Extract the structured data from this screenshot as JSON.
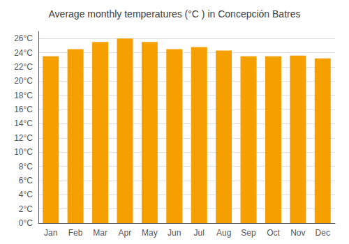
{
  "chart_data": {
    "type": "bar",
    "title": "Average monthly temperatures (°C ) in Concepción Batres",
    "categories": [
      "Jan",
      "Feb",
      "Mar",
      "Apr",
      "May",
      "Jun",
      "Jul",
      "Aug",
      "Sep",
      "Oct",
      "Nov",
      "Dec"
    ],
    "values": [
      23.5,
      24.5,
      25.5,
      26.0,
      25.5,
      24.5,
      24.8,
      24.3,
      23.5,
      23.5,
      23.6,
      23.2
    ],
    "color": "#F5A000",
    "ylim": [
      0,
      27
    ],
    "yticks": [
      {
        "value": 0,
        "label": "0°C"
      },
      {
        "value": 2,
        "label": "2°C"
      },
      {
        "value": 4,
        "label": "4°C"
      },
      {
        "value": 6,
        "label": "6°C"
      },
      {
        "value": 8,
        "label": "8°C"
      },
      {
        "value": 10,
        "label": "10°C"
      },
      {
        "value": 12,
        "label": "12°C"
      },
      {
        "value": 14,
        "label": "14°C"
      },
      {
        "value": 16,
        "label": "16°C"
      },
      {
        "value": 18,
        "label": "18°C"
      },
      {
        "value": 20,
        "label": "20°C"
      },
      {
        "value": 22,
        "label": "22°C"
      },
      {
        "value": 24,
        "label": "24°C"
      },
      {
        "value": 26,
        "label": "26°C"
      }
    ],
    "grid": true
  }
}
